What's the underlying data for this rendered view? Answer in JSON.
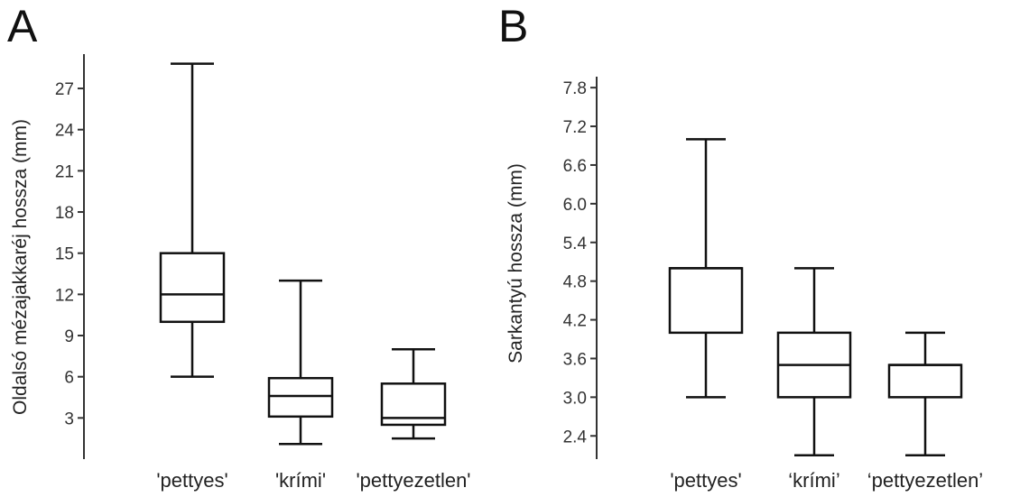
{
  "chart_data": [
    {
      "type": "box",
      "panel_label": "A",
      "ylabel": "Oldalsó mézajakkaréj hossza (mm)",
      "xlabel": "",
      "ylim": [
        0,
        29.5
      ],
      "yticks": [
        3,
        6,
        9,
        12,
        15,
        18,
        21,
        24,
        27
      ],
      "ytick_labels": [
        "3",
        "6",
        "9",
        "12",
        "15",
        "18",
        "21",
        "24",
        "27"
      ],
      "categories": [
        "'pettyes'",
        "'krími'",
        "'pettyezetlen'"
      ],
      "boxes": [
        {
          "category": "'pettyes'",
          "min": 6.0,
          "q1": 10.0,
          "median": 12.0,
          "q3": 15.0,
          "max": 28.8
        },
        {
          "category": "'krími'",
          "min": 1.1,
          "q1": 3.1,
          "median": 4.6,
          "q3": 5.9,
          "max": 13.0
        },
        {
          "category": "'pettyezetlen'",
          "min": 1.5,
          "q1": 2.5,
          "median": 3.0,
          "q3": 5.5,
          "max": 8.0
        }
      ]
    },
    {
      "type": "box",
      "panel_label": "B",
      "ylabel": "Sarkantyú hossza (mm)",
      "xlabel": "",
      "ylim": [
        2.04,
        7.97
      ],
      "yticks": [
        2.4,
        3.0,
        3.6,
        4.2,
        4.8,
        5.4,
        6.0,
        6.6,
        7.2,
        7.8
      ],
      "ytick_labels": [
        "2.4",
        "3.0",
        "3.6",
        "4.2",
        "4.8",
        "5.4",
        "6.0",
        "6.6",
        "7.2",
        "7.8"
      ],
      "categories": [
        "'pettyes'",
        "‘krími’",
        "‘pettyezetlen’"
      ],
      "boxes": [
        {
          "category": "'pettyes'",
          "min": 3.0,
          "q1": 4.0,
          "median": 5.0,
          "q3": 5.0,
          "max": 7.0
        },
        {
          "category": "‘krími’",
          "min": 2.1,
          "q1": 3.0,
          "median": 3.5,
          "q3": 4.0,
          "max": 5.0
        },
        {
          "category": "‘pettyezetlen’",
          "min": 2.1,
          "q1": 3.0,
          "median": 3.5,
          "q3": 3.5,
          "max": 4.0
        }
      ]
    }
  ]
}
